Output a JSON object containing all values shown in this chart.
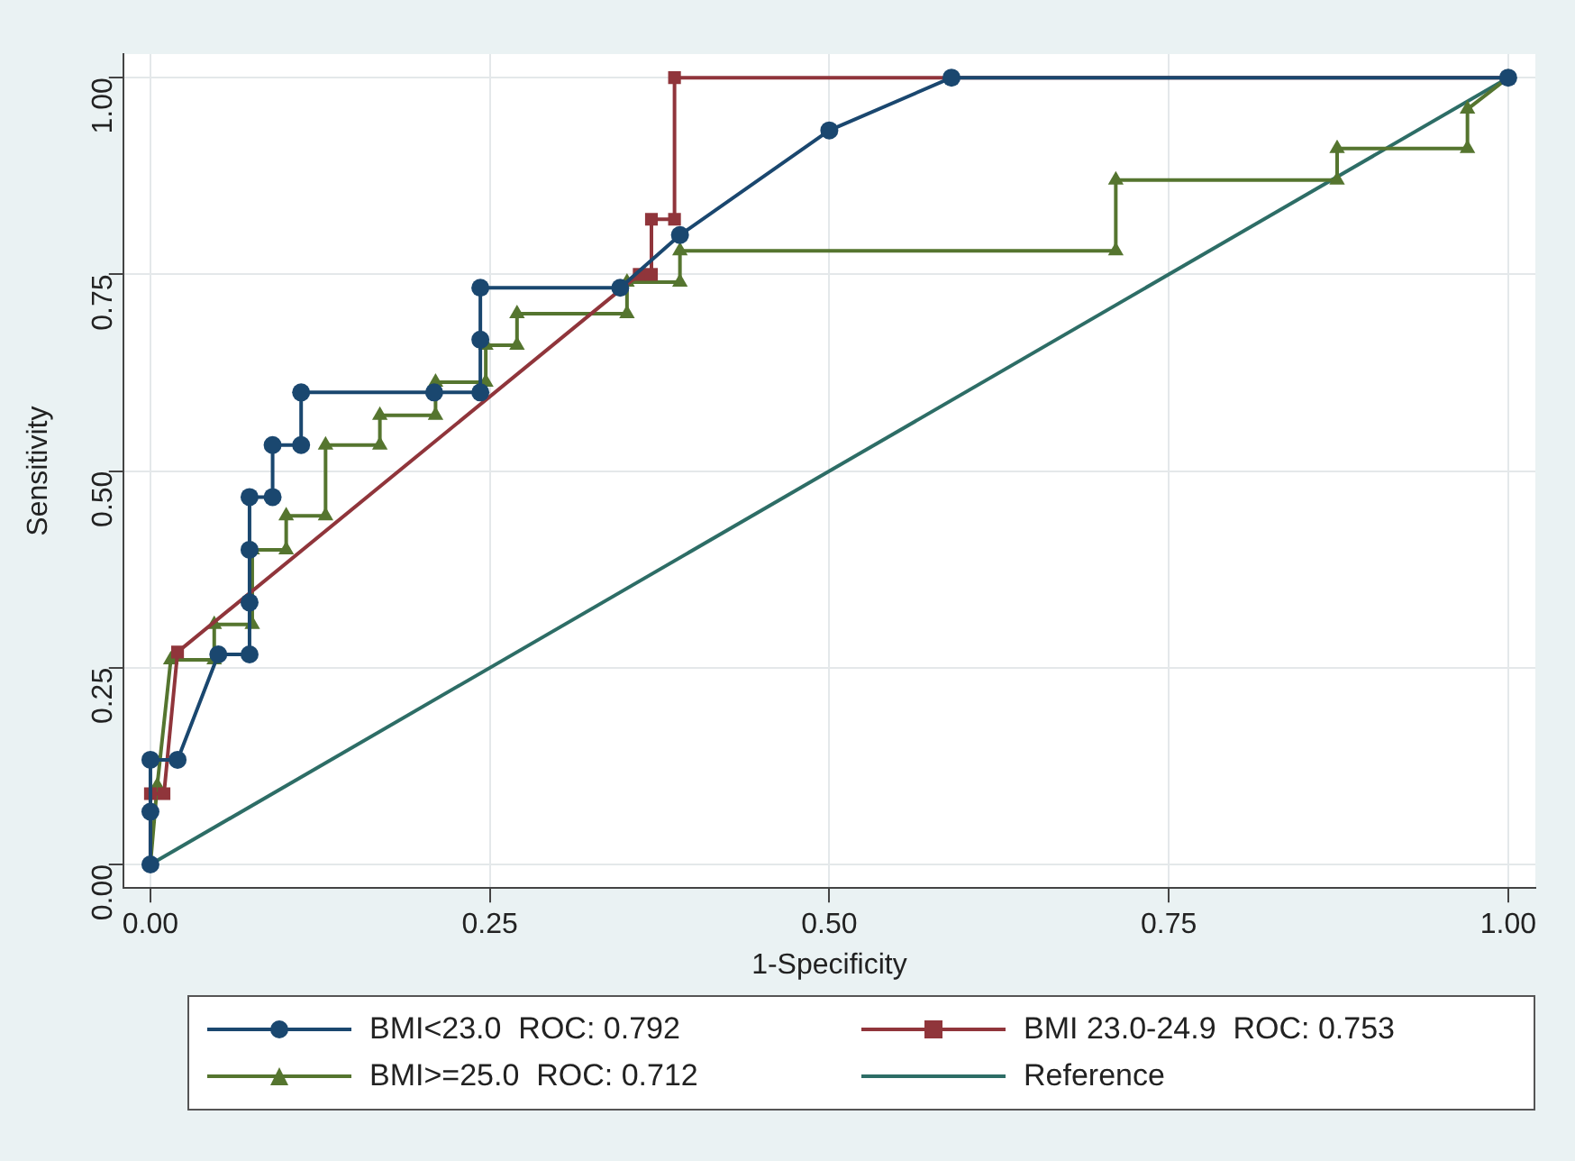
{
  "chart_data": {
    "type": "line",
    "xlabel": "1-Specificity",
    "ylabel": "Sensitivity",
    "xlim": [
      -0.02,
      1.02
    ],
    "ylim": [
      -0.03,
      1.03
    ],
    "xticks": [
      {
        "value": 0,
        "label": "0.00"
      },
      {
        "value": 0.25,
        "label": "0.25"
      },
      {
        "value": 0.5,
        "label": "0.50"
      },
      {
        "value": 0.75,
        "label": "0.75"
      },
      {
        "value": 1,
        "label": "1.00"
      }
    ],
    "yticks": [
      {
        "value": 0,
        "label": "0.00"
      },
      {
        "value": 0.25,
        "label": "0.25"
      },
      {
        "value": 0.5,
        "label": "0.50"
      },
      {
        "value": 0.75,
        "label": "0.75"
      },
      {
        "value": 1,
        "label": "1.00"
      }
    ],
    "grid": true,
    "legend": "bottom",
    "line_style": "solid",
    "series": [
      {
        "name": "BMI<23.0  ROC: 0.792",
        "color": "#1a476f",
        "marker": "circle",
        "x": [
          0,
          0,
          0,
          0.02,
          0.05,
          0.073,
          0.073,
          0.073,
          0.073,
          0.09,
          0.09,
          0.111,
          0.111,
          0.209,
          0.243,
          0.243,
          0.243,
          0.346,
          0.39,
          0.5,
          0.59,
          1
        ],
        "values": [
          0,
          0.067,
          0.133,
          0.133,
          0.267,
          0.267,
          0.333,
          0.4,
          0.467,
          0.467,
          0.533,
          0.533,
          0.6,
          0.6,
          0.6,
          0.667,
          0.733,
          0.733,
          0.8,
          0.933,
          1,
          1
        ]
      },
      {
        "name": "BMI 23.0-24.9  ROC: 0.753",
        "color": "#90353b",
        "marker": "square",
        "x": [
          0,
          0,
          0.01,
          0.02,
          0.36,
          0.369,
          0.369,
          0.386,
          0.386,
          1
        ],
        "values": [
          0,
          0.09,
          0.09,
          0.27,
          0.75,
          0.75,
          0.82,
          0.82,
          1,
          1
        ]
      },
      {
        "name": "BMI>=25.0  ROC: 0.712",
        "color": "#55752f",
        "marker": "triangle",
        "x": [
          0,
          0.005,
          0.015,
          0.047,
          0.047,
          0.075,
          0.075,
          0.1,
          0.1,
          0.129,
          0.129,
          0.169,
          0.169,
          0.21,
          0.21,
          0.247,
          0.247,
          0.27,
          0.27,
          0.351,
          0.351,
          0.39,
          0.39,
          0.711,
          0.711,
          0.874,
          0.874,
          0.97,
          0.97,
          1
        ],
        "values": [
          0,
          0.1,
          0.26,
          0.26,
          0.305,
          0.305,
          0.4,
          0.4,
          0.443,
          0.443,
          0.533,
          0.533,
          0.571,
          0.571,
          0.613,
          0.613,
          0.66,
          0.66,
          0.7,
          0.7,
          0.74,
          0.74,
          0.78,
          0.78,
          0.87,
          0.87,
          0.91,
          0.91,
          0.96,
          1
        ]
      },
      {
        "name": "Reference",
        "color": "#2d6d66",
        "marker": "none",
        "x": [
          0,
          1
        ],
        "values": [
          0,
          1
        ]
      }
    ]
  }
}
